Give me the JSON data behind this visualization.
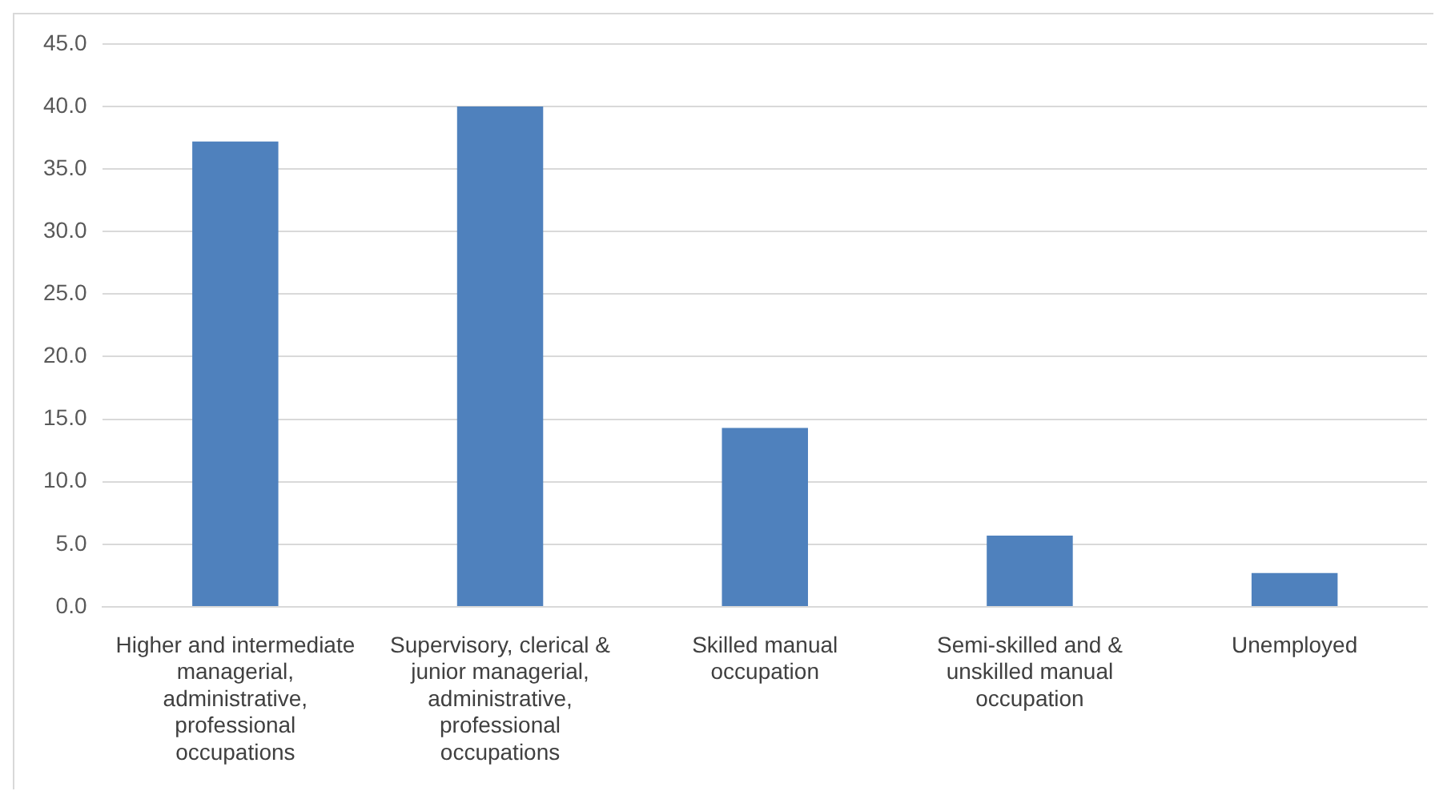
{
  "chart_data": {
    "type": "bar",
    "categories": [
      "Higher and intermediate managerial, administrative, professional occupations",
      "Supervisory, clerical & junior managerial, administrative, professional occupations",
      "Skilled manual occupation",
      "Semi-skilled and & unskilled manual occupation",
      "Unemployed"
    ],
    "values": [
      37.2,
      40.0,
      14.3,
      5.7,
      2.7
    ],
    "color": "#4f81bd",
    "ylim": [
      0,
      45
    ],
    "yticks": [
      {
        "value": 0,
        "label": "0.0"
      },
      {
        "value": 5,
        "label": "5.0"
      },
      {
        "value": 10,
        "label": "10.0"
      },
      {
        "value": 15,
        "label": "15.0"
      },
      {
        "value": 20,
        "label": "20.0"
      },
      {
        "value": 25,
        "label": "25.0"
      },
      {
        "value": 30,
        "label": "30.0"
      },
      {
        "value": 35,
        "label": "35.0"
      },
      {
        "value": 40,
        "label": "40.0"
      },
      {
        "value": 45,
        "label": "45.0"
      }
    ],
    "grid": "y"
  }
}
